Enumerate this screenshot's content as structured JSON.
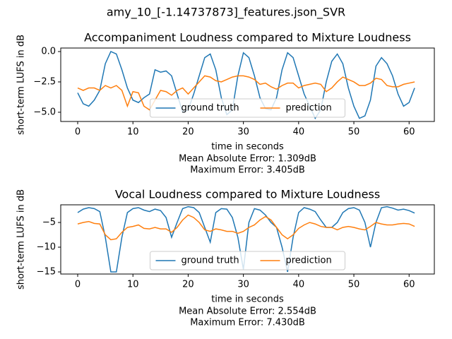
{
  "title": "amy_10_[-1.14737873]_features.json_SVR",
  "chart_data": [
    {
      "type": "line",
      "title": "Accompaniment Loudness compared to Mixture Loudness",
      "xlabel": "time in seconds",
      "ylabel": "short-term LUFS in dB",
      "annotations": [
        "Mean Absolute Error: 1.309dB",
        "Maximum Error: 3.405dB"
      ],
      "legend": "lower center",
      "x": [
        0,
        1,
        2,
        3,
        4,
        5,
        6,
        7,
        8,
        9,
        10,
        11,
        12,
        13,
        14,
        15,
        16,
        17,
        18,
        19,
        20,
        21,
        22,
        23,
        24,
        25,
        26,
        27,
        28,
        29,
        30,
        31,
        32,
        33,
        34,
        35,
        36,
        37,
        38,
        39,
        40,
        41,
        42,
        43,
        44,
        45,
        46,
        47,
        48,
        49,
        50,
        51,
        52,
        53,
        54,
        55,
        56,
        57,
        58,
        59,
        60,
        61
      ],
      "series": [
        {
          "name": "ground truth",
          "color": "#1f77b4",
          "values": [
            -3.4,
            -4.3,
            -4.5,
            -4.0,
            -3.2,
            -1.0,
            0.0,
            -0.2,
            -1.5,
            -3.0,
            -4.0,
            -4.2,
            -3.8,
            -3.5,
            -1.5,
            -1.7,
            -1.6,
            -2.0,
            -3.5,
            -5.0,
            -4.8,
            -3.5,
            -2.0,
            -0.5,
            -0.2,
            -1.5,
            -3.8,
            -5.2,
            -4.8,
            -2.0,
            -0.1,
            -0.5,
            -2.0,
            -3.8,
            -4.7,
            -4.8,
            -3.8,
            -1.5,
            -0.1,
            -0.5,
            -2.0,
            -3.5,
            -4.5,
            -5.5,
            -4.8,
            -2.5,
            -0.8,
            -0.2,
            -1.0,
            -3.0,
            -4.5,
            -5.5,
            -5.3,
            -4.0,
            -1.2,
            -0.5,
            -1.0,
            -2.0,
            -3.5,
            -4.5,
            -4.2,
            -3.0
          ]
        },
        {
          "name": "prediction",
          "color": "#ff7f0e",
          "values": [
            -3.0,
            -3.2,
            -3.0,
            -3.0,
            -3.2,
            -2.8,
            -3.0,
            -2.8,
            -3.2,
            -4.5,
            -3.3,
            -3.4,
            -4.5,
            -4.8,
            -4.0,
            -3.2,
            -3.3,
            -3.6,
            -3.2,
            -3.0,
            -3.5,
            -3.0,
            -2.5,
            -2.0,
            -2.1,
            -2.4,
            -2.5,
            -2.3,
            -2.1,
            -2.0,
            -2.0,
            -2.1,
            -2.3,
            -2.7,
            -2.6,
            -2.9,
            -3.1,
            -2.8,
            -2.6,
            -2.6,
            -3.0,
            -2.8,
            -2.7,
            -2.6,
            -2.7,
            -3.3,
            -3.0,
            -2.5,
            -2.1,
            -2.3,
            -2.5,
            -2.8,
            -2.8,
            -2.6,
            -2.2,
            -2.3,
            -2.8,
            -2.9,
            -2.9,
            -2.7,
            -2.6,
            -2.5
          ]
        }
      ],
      "xlim": [
        -3.07,
        64.57
      ],
      "xticks": [
        0,
        10,
        20,
        30,
        40,
        50,
        60
      ],
      "ylim": [
        -5.76,
        0.29
      ],
      "yticks": [
        {
          "value": 0,
          "label": "0.0"
        },
        {
          "value": -2.5,
          "label": "−2.5"
        },
        {
          "value": -5,
          "label": "−5.0"
        }
      ]
    },
    {
      "type": "line",
      "title": "Vocal Loudness compared to Mixture Loudness",
      "xlabel": "time in seconds",
      "ylabel": "short-term LUFS in dB",
      "annotations": [
        "Mean Absolute Error: 2.554dB",
        "Maximum Error: 7.430dB"
      ],
      "legend": "lower center",
      "x": [
        0,
        1,
        2,
        3,
        4,
        5,
        6,
        7,
        8,
        9,
        10,
        11,
        12,
        13,
        14,
        15,
        16,
        17,
        18,
        19,
        20,
        21,
        22,
        23,
        24,
        25,
        26,
        27,
        28,
        29,
        30,
        31,
        32,
        33,
        34,
        35,
        36,
        37,
        38,
        39,
        40,
        41,
        42,
        43,
        44,
        45,
        46,
        47,
        48,
        49,
        50,
        51,
        52,
        53,
        54,
        55,
        56,
        57,
        58,
        59,
        60,
        61
      ],
      "series": [
        {
          "name": "ground truth",
          "color": "#1f77b4",
          "values": [
            -3,
            -2.3,
            -2,
            -2.2,
            -2.8,
            -8,
            -15,
            -15,
            -8,
            -3,
            -2.2,
            -2,
            -2.5,
            -2.8,
            -2.3,
            -2.6,
            -4,
            -8,
            -5,
            -2.2,
            -1.8,
            -2,
            -3,
            -6,
            -9,
            -3,
            -2.2,
            -2.3,
            -4,
            -8,
            -14.5,
            -5,
            -2.2,
            -2.5,
            -3.5,
            -5,
            -6,
            -10,
            -15,
            -8,
            -3,
            -2,
            -2.3,
            -2.8,
            -4.5,
            -6,
            -6,
            -5,
            -3,
            -2.2,
            -2,
            -2.5,
            -5,
            -10,
            -5,
            -2,
            -1.8,
            -2.1,
            -2.5,
            -2.3,
            -2.6,
            -3.1
          ]
        },
        {
          "name": "prediction",
          "color": "#ff7f0e",
          "values": [
            -5.3,
            -5.0,
            -4.8,
            -5.2,
            -5.3,
            -7.5,
            -8.5,
            -8.3,
            -7.0,
            -6.0,
            -5.8,
            -5.5,
            -6.2,
            -6.3,
            -6.0,
            -6.3,
            -6.3,
            -7.0,
            -6.0,
            -4.5,
            -3.5,
            -4.0,
            -5.0,
            -6.5,
            -6.8,
            -6.3,
            -6.5,
            -6.8,
            -6.8,
            -7.2,
            -6.8,
            -6.0,
            -5.5,
            -4.5,
            -3.8,
            -4.5,
            -6.0,
            -7.5,
            -8.3,
            -7.5,
            -6.2,
            -5.5,
            -5.0,
            -5.3,
            -5.8,
            -6.0,
            -6.0,
            -6.5,
            -6.0,
            -5.8,
            -6.0,
            -6.3,
            -6.5,
            -5.8,
            -5.0,
            -5.3,
            -5.5,
            -5.5,
            -5.3,
            -5.2,
            -5.3,
            -5.8
          ]
        }
      ],
      "xlim": [
        -3.07,
        64.57
      ],
      "xticks": [
        0,
        10,
        20,
        30,
        40,
        50,
        60
      ],
      "ylim": [
        -15.43,
        -1.43
      ],
      "yticks": [
        {
          "value": -5,
          "label": "−5"
        },
        {
          "value": -10,
          "label": "−10"
        },
        {
          "value": -15,
          "label": "−15"
        }
      ]
    }
  ]
}
